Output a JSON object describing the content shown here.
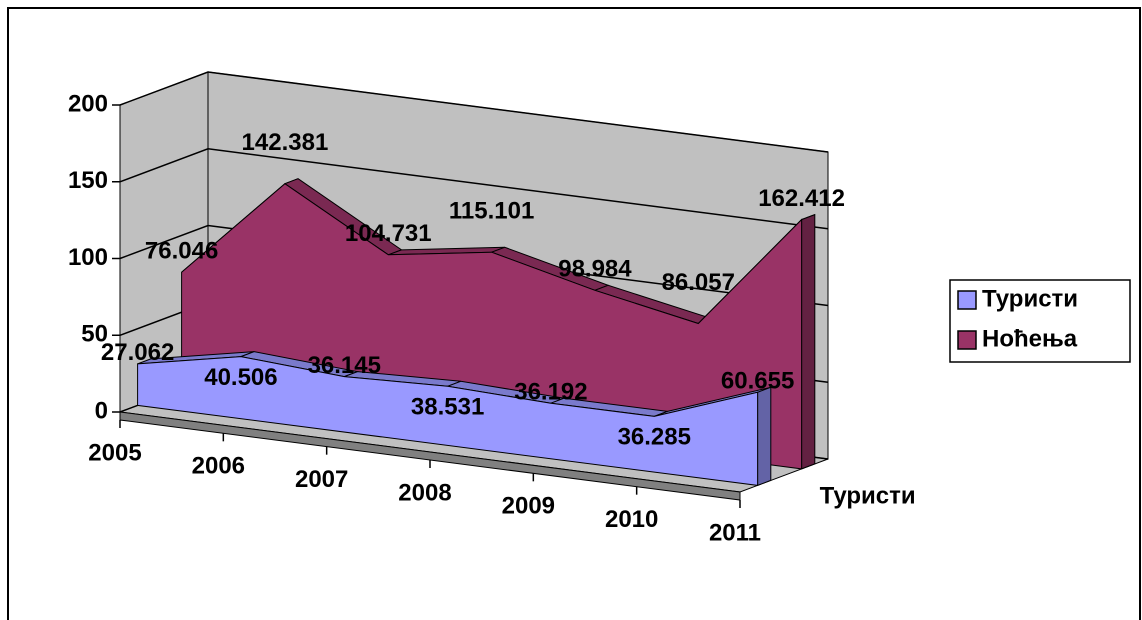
{
  "chart_data": {
    "type": "area3d",
    "categories": [
      "2005",
      "2006",
      "2007",
      "2008",
      "2009",
      "2010",
      "2011"
    ],
    "series": [
      {
        "name": "Туристи",
        "color": "#9999ff",
        "values": [
          27.062,
          40.506,
          36.145,
          38.531,
          36.192,
          36.285,
          60.655
        ]
      },
      {
        "name": "Ноћења",
        "color": "#993366",
        "values": [
          76.046,
          142.381,
          104.731,
          115.101,
          98.984,
          86.057,
          162.412
        ]
      }
    ],
    "ylim": [
      0,
      200
    ],
    "yticks": [
      0,
      50,
      100,
      150,
      200
    ],
    "grid": true,
    "legend": "right"
  }
}
